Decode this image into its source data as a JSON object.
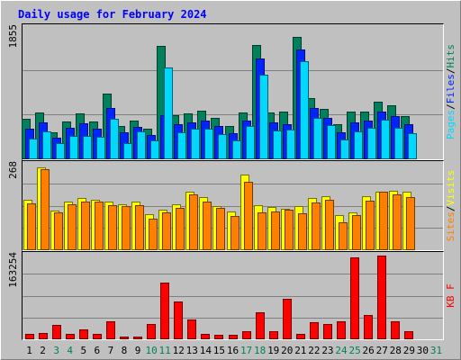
{
  "chart_data": {
    "type": "bar",
    "title": "Daily usage for February 2024",
    "categories": [
      "1",
      "2",
      "3",
      "4",
      "5",
      "6",
      "7",
      "8",
      "9",
      "10",
      "11",
      "12",
      "13",
      "14",
      "15",
      "16",
      "17",
      "18",
      "19",
      "20",
      "21",
      "22",
      "23",
      "24",
      "25",
      "26",
      "27",
      "28",
      "29",
      "30",
      "31"
    ],
    "weekend_days": [
      "3",
      "4",
      "10",
      "11",
      "17",
      "18",
      "24",
      "25",
      "31"
    ],
    "days_with_data": 29,
    "panels": [
      {
        "id": "top",
        "ymax_label": "1855",
        "ymax": 1855,
        "right_label": [
          "Pages",
          "/",
          "Files",
          "/",
          "Hits"
        ],
        "series": [
          {
            "name": "Hits",
            "color": "#00805c",
            "values": [
              560,
              650,
              380,
              530,
              640,
              530,
              920,
              470,
              540,
              420,
              1580,
              620,
              640,
              680,
              580,
              460,
              650,
              1590,
              650,
              660,
              1705,
              850,
              700,
              490,
              660,
              660,
              800,
              750,
              600
            ]
          },
          {
            "name": "Files",
            "color": "#0024ff",
            "values": [
              430,
              520,
              300,
              440,
              500,
              420,
              720,
              380,
              450,
              340,
              610,
              490,
              520,
              540,
              470,
              360,
              540,
              1400,
              520,
              490,
              1530,
              720,
              580,
              380,
              520,
              540,
              660,
              600,
              490
            ]
          },
          {
            "name": "Pages",
            "color": "#00d8ff",
            "values": [
              290,
              390,
              230,
              330,
              330,
              310,
              560,
              230,
              390,
              260,
              1280,
              380,
              430,
              430,
              350,
              260,
              460,
              1180,
              400,
              410,
              1360,
              580,
              480,
              270,
              390,
              440,
              550,
              440,
              360
            ]
          }
        ]
      },
      {
        "id": "middle",
        "ymax_label": "268",
        "ymax": 268,
        "right_label": [
          "Sites",
          "/",
          "Visits"
        ],
        "series": [
          {
            "name": "Visits",
            "color": "#ffff00",
            "values": [
              155,
              255,
              122,
              148,
              160,
              156,
              148,
              140,
              150,
              110,
              125,
              140,
              180,
              162,
              136,
              118,
              231,
              138,
              133,
              128,
              136,
              160,
              165,
              108,
              117,
              165,
              180,
              182,
              180
            ]
          },
          {
            "name": "Sites",
            "color": "#ff8000",
            "values": [
              143,
              250,
              116,
              140,
              148,
              150,
              139,
              136,
              137,
              97,
              115,
              130,
              172,
              148,
              131,
              105,
              210,
              117,
              120,
              125,
              112,
              147,
              154,
              87,
              108,
              153,
              179,
              171,
              164
            ]
          }
        ]
      },
      {
        "id": "bottom",
        "ymax_label": "163254",
        "ymax": 163254,
        "right_label": [
          "KB",
          " ",
          "F"
        ],
        "series": [
          {
            "name": "KB F",
            "color": "#ff0000",
            "values": [
              10000,
              11500,
              27000,
              11000,
              19000,
              11000,
              34000,
              5500,
              6000,
              29000,
              108000,
              73000,
              38500,
              11000,
              9000,
              8500,
              16000,
              52000,
              15000,
              77000,
              11000,
              32000,
              30000,
              35000,
              157000,
              46500,
              159000,
              35000,
              15500
            ]
          }
        ]
      }
    ]
  }
}
